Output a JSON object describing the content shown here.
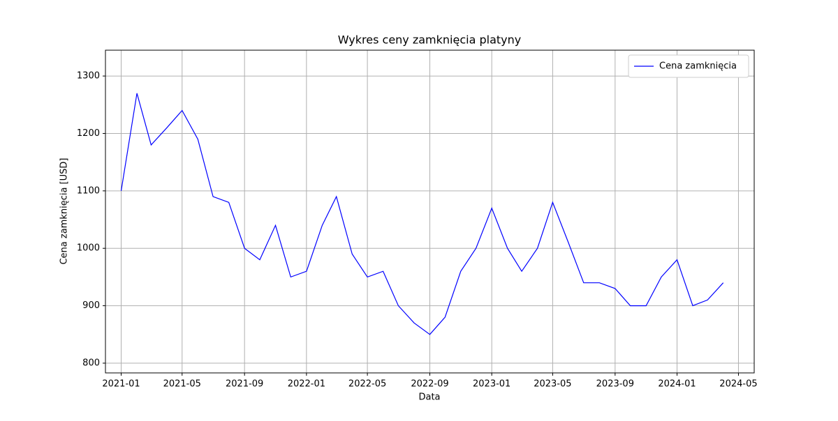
{
  "chart_data": {
    "type": "line",
    "title": "Wykres ceny zamknięcia platyny",
    "xlabel": "Data",
    "ylabel": "Cena zamknięcia [USD]",
    "x": [
      "2021-01",
      "2021-02",
      "2021-03",
      "2021-04",
      "2021-05",
      "2021-06",
      "2021-07",
      "2021-08",
      "2021-09",
      "2021-10",
      "2021-11",
      "2021-12",
      "2022-01",
      "2022-02",
      "2022-03",
      "2022-04",
      "2022-05",
      "2022-06",
      "2022-07",
      "2022-08",
      "2022-09",
      "2022-10",
      "2022-11",
      "2022-12",
      "2023-01",
      "2023-02",
      "2023-03",
      "2023-04",
      "2023-05",
      "2023-06",
      "2023-07",
      "2023-08",
      "2023-09",
      "2023-10",
      "2023-11",
      "2023-12",
      "2024-01",
      "2024-02",
      "2024-03",
      "2024-04"
    ],
    "series": [
      {
        "name": "Cena zamknięcia",
        "color": "#0000ff",
        "values": [
          1100,
          1270,
          1180,
          1210,
          1240,
          1190,
          1090,
          1080,
          1000,
          980,
          1040,
          950,
          960,
          1040,
          1090,
          990,
          950,
          960,
          900,
          870,
          850,
          880,
          960,
          1000,
          1070,
          1000,
          960,
          1000,
          1080,
          1010,
          940,
          940,
          930,
          900,
          900,
          950,
          980,
          900,
          910,
          940
        ]
      }
    ],
    "xlim": [
      "2020-12",
      "2024-06"
    ],
    "xticks": [
      "2021-01",
      "2021-05",
      "2021-09",
      "2022-01",
      "2022-05",
      "2022-09",
      "2023-01",
      "2023-05",
      "2023-09",
      "2024-01",
      "2024-05"
    ],
    "ylim": [
      783,
      1345
    ],
    "yticks": [
      800,
      900,
      1000,
      1100,
      1200,
      1300
    ],
    "grid": true,
    "legend": "upper right"
  }
}
